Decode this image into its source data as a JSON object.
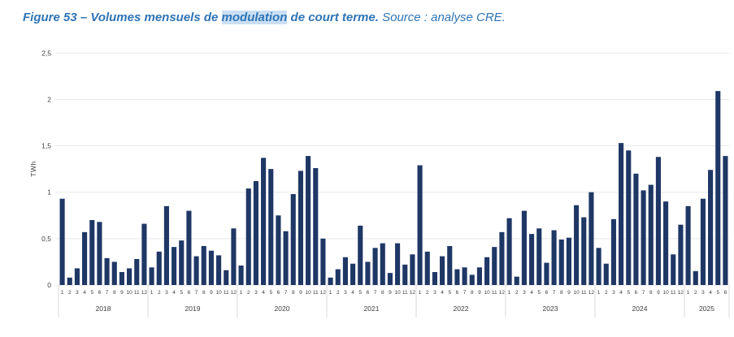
{
  "title": {
    "prefix": "Figure 53 – Volumes mensuels de ",
    "highlight": "modulation",
    "middle": " de court terme",
    "separator": ". ",
    "source": "Source : analyse CRE."
  },
  "colors": {
    "bar": "#1e3765",
    "title": "#2e74b5",
    "highlight_bg": "#cbdff4",
    "grid": "#e9e9e9",
    "separator": "#d9d9d9",
    "axis_text": "#3d3d3d"
  },
  "chart_data": {
    "type": "bar",
    "title": "Volumes mensuels de modulation de court terme",
    "xlabel": "",
    "ylabel": "TWh",
    "ylim": [
      0,
      2.5
    ],
    "grid": true,
    "legend": "none",
    "yticks": [
      {
        "v": 0,
        "label": "0"
      },
      {
        "v": 0.5,
        "label": "0,5"
      },
      {
        "v": 1,
        "label": "1"
      },
      {
        "v": 1.5,
        "label": "1,5"
      },
      {
        "v": 2,
        "label": "2"
      },
      {
        "v": 2.5,
        "label": "2,5"
      }
    ],
    "x_tick_style": "month numbers 1-12 grouped under year labels",
    "years": [
      {
        "year": "2018",
        "values": [
          0.93,
          0.08,
          0.18,
          0.57,
          0.7,
          0.68,
          0.29,
          0.25,
          0.14,
          0.18,
          0.28,
          0.66
        ]
      },
      {
        "year": "2019",
        "values": [
          0.19,
          0.36,
          0.85,
          0.41,
          0.48,
          0.8,
          0.31,
          0.42,
          0.37,
          0.32,
          0.16,
          0.61
        ]
      },
      {
        "year": "2020",
        "values": [
          0.21,
          1.04,
          1.12,
          1.37,
          1.25,
          0.75,
          0.58,
          0.98,
          1.23,
          1.39,
          1.26,
          0.5
        ]
      },
      {
        "year": "2021",
        "values": [
          0.08,
          0.17,
          0.3,
          0.23,
          0.64,
          0.25,
          0.4,
          0.45,
          0.13,
          0.45,
          0.22,
          0.33
        ]
      },
      {
        "year": "2022",
        "values": [
          1.29,
          0.36,
          0.14,
          0.31,
          0.42,
          0.17,
          0.19,
          0.11,
          0.19,
          0.3,
          0.41,
          0.57
        ]
      },
      {
        "year": "2023",
        "values": [
          0.72,
          0.09,
          0.8,
          0.55,
          0.61,
          0.24,
          0.59,
          0.49,
          0.51,
          0.86,
          0.73,
          1.0
        ]
      },
      {
        "year": "2024",
        "values": [
          0.4,
          0.23,
          0.71,
          1.53,
          1.45,
          1.2,
          1.02,
          1.08,
          1.38,
          0.9,
          0.33,
          0.65
        ]
      },
      {
        "year": "2025",
        "values": [
          0.85,
          0.15,
          0.93,
          1.24,
          2.09,
          1.39
        ]
      }
    ]
  }
}
